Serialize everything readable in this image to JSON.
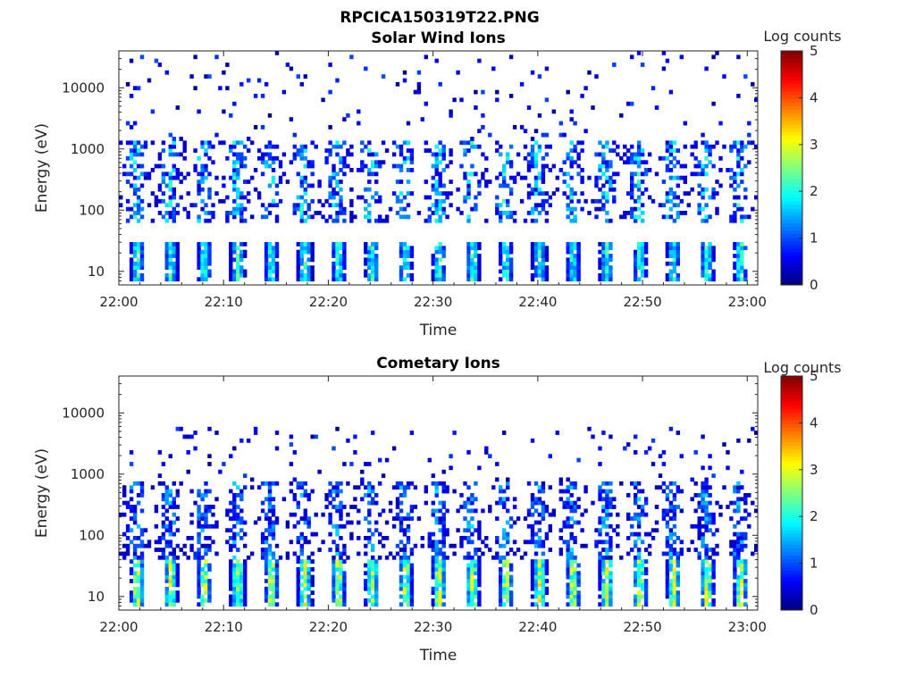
{
  "figure_title": "RPCICA150319T22.PNG",
  "chart_data": [
    {
      "type": "heatmap",
      "title": "Solar Wind Ions",
      "xlabel": "Time",
      "ylabel": "Energy (eV)",
      "colorbar_label": "Log counts",
      "colormap": "jet",
      "color_range": [
        0,
        5
      ],
      "colorbar_ticks": [
        "0",
        "1",
        "2",
        "3",
        "4",
        "5"
      ],
      "x_range": [
        "22:00",
        "23:01"
      ],
      "x_ticks": [
        "22:00",
        "22:10",
        "22:20",
        "22:30",
        "22:40",
        "22:50",
        "23:00"
      ],
      "y_scale": "log",
      "y_range": [
        6,
        40000
      ],
      "y_ticks": [
        "10",
        "100",
        "1000",
        "10000"
      ],
      "pattern": {
        "sweep_period_min": 3.2,
        "low_band": {
          "energy_ev": [
            7,
            32
          ],
          "peak_log_counts": 2.5
        },
        "mid_band": {
          "energy_ev": [
            60,
            1300
          ],
          "peak_log_counts": 2.3
        },
        "sparse_noise": {
          "energy_ev": [
            1300,
            40000
          ],
          "log_counts": [
            0,
            1
          ]
        }
      }
    },
    {
      "type": "heatmap",
      "title": "Cometary Ions",
      "xlabel": "Time",
      "ylabel": "Energy (eV)",
      "colorbar_label": "Log counts",
      "colormap": "jet",
      "color_range": [
        0,
        5
      ],
      "colorbar_ticks": [
        "0",
        "1",
        "2",
        "3",
        "4",
        "5"
      ],
      "x_range": [
        "22:00",
        "23:01"
      ],
      "x_ticks": [
        "22:00",
        "22:10",
        "22:20",
        "22:30",
        "22:40",
        "22:50",
        "23:00"
      ],
      "y_scale": "log",
      "y_range": [
        6,
        40000
      ],
      "y_ticks": [
        "10",
        "100",
        "1000",
        "10000"
      ],
      "pattern": {
        "sweep_period_min": 3.2,
        "low_band": {
          "energy_ev": [
            7,
            40
          ],
          "peak_log_counts": 3.4
        },
        "mid_band": {
          "energy_ev": [
            40,
            800
          ],
          "peak_log_counts": 1.8
        },
        "sparse_noise": {
          "energy_ev": [
            800,
            6000
          ],
          "log_counts": [
            0,
            1
          ]
        }
      }
    }
  ]
}
